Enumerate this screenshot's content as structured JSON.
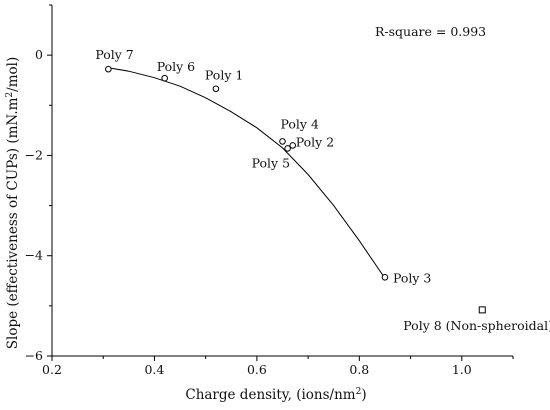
{
  "chart_data": {
    "type": "scatter",
    "xlabel_main": "Charge density, (ions/nm",
    "xlabel_sup": "2",
    "xlabel_end": ")",
    "ylabel_main": "Slope (effectiveness of CUPs) (mN.m",
    "ylabel_sup": "2",
    "ylabel_end": "/mol)",
    "annotation": "R-square = 0.993",
    "xlim": [
      0.2,
      1.1
    ],
    "ylim": [
      -6,
      1
    ],
    "x_ticks": [
      0.2,
      0.4,
      0.6,
      0.8,
      1.0
    ],
    "x_tick_labels": [
      "0.2",
      "0.4",
      "0.6",
      "0.8",
      "1.0"
    ],
    "y_ticks": [
      -6,
      -4,
      -2,
      0
    ],
    "y_tick_labels": [
      "−6",
      "−4",
      "−2",
      "0"
    ],
    "grid": false,
    "points": [
      {
        "label": "Poly 7",
        "x": 0.31,
        "y": -0.28,
        "marker": "circle"
      },
      {
        "label": "Poly 6",
        "x": 0.42,
        "y": -0.46,
        "marker": "circle"
      },
      {
        "label": "Poly 1",
        "x": 0.52,
        "y": -0.67,
        "marker": "circle"
      },
      {
        "label": "Poly 4",
        "x": 0.65,
        "y": -1.72,
        "marker": "circle"
      },
      {
        "label": "Poly 2",
        "x": 0.67,
        "y": -1.8,
        "marker": "circle"
      },
      {
        "label": "Poly 5",
        "x": 0.66,
        "y": -1.86,
        "marker": "circle"
      },
      {
        "label": "Poly 3",
        "x": 0.85,
        "y": -4.43,
        "marker": "circle"
      },
      {
        "label": "Poly 8 (Non-spheroidal)",
        "x": 1.04,
        "y": -5.08,
        "marker": "square"
      }
    ],
    "fit_curve": {
      "x": [
        0.31,
        0.35,
        0.4,
        0.45,
        0.5,
        0.55,
        0.6,
        0.65,
        0.7,
        0.75,
        0.8,
        0.85
      ],
      "y": [
        -0.25,
        -0.32,
        -0.45,
        -0.62,
        -0.85,
        -1.13,
        -1.45,
        -1.85,
        -2.38,
        -3.0,
        -3.7,
        -4.45
      ]
    }
  }
}
